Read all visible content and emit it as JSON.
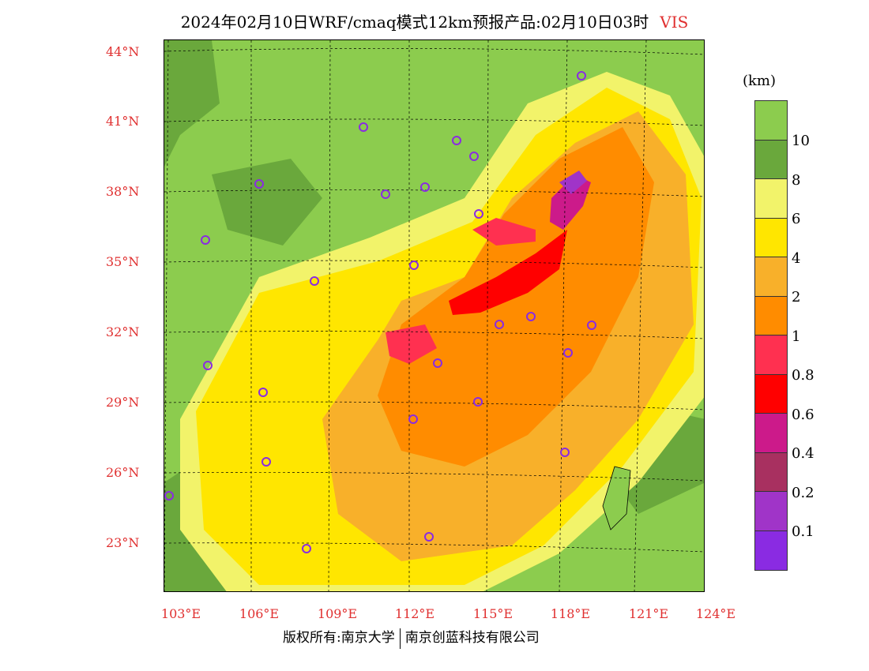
{
  "title": {
    "text": "2024年02月10日WRF/cmaq模式12km预报产品:02月10日03时",
    "variable": "VIS"
  },
  "unit_label": "(km)",
  "latitudes": [
    "44°N",
    "41°N",
    "38°N",
    "35°N",
    "32°N",
    "29°N",
    "26°N",
    "23°N"
  ],
  "longitudes": [
    "103°E",
    "106°E",
    "109°E",
    "112°E",
    "115°E",
    "118°E",
    "121°E",
    "124°E"
  ],
  "colorbar": {
    "colors": [
      "#8ccc4e",
      "#6aa83c",
      "#f2f36a",
      "#ffe600",
      "#f8b02a",
      "#ff8c00",
      "#ff3050",
      "#ff0000",
      "#cc1a8a",
      "#a83060",
      "#a034c8",
      "#8a2be2"
    ],
    "labels": [
      "10",
      "8",
      "6",
      "4",
      "2",
      "1",
      "0.8",
      "0.6",
      "0.4",
      "0.2",
      "0.1"
    ]
  },
  "footer": {
    "left": "版权所有:南京大学",
    "right": "南京创蓝科技有限公司"
  }
}
